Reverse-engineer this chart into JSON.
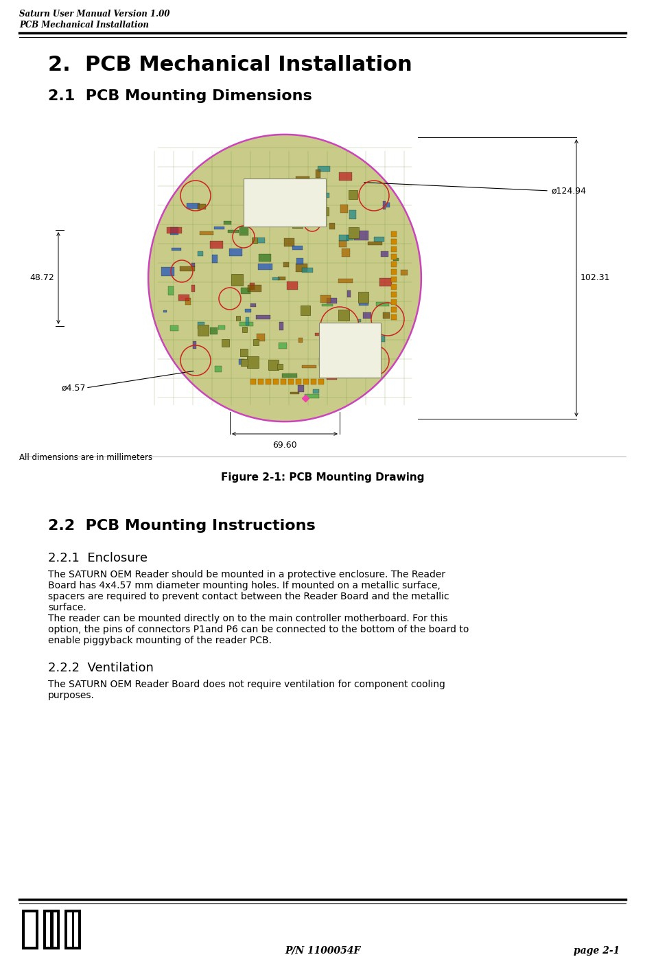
{
  "header_line1": "Saturn User Manual Version 1.00",
  "header_line2": "PCB Mechanical Installation",
  "main_title": "2.  PCB Mechanical Installation",
  "section_21_title": "2.1  PCB Mounting Dimensions",
  "figure_caption": "Figure 2-1: PCB Mounting Drawing",
  "dim_labels": {
    "diameter_top": "ø124.94",
    "width_right": "102.31",
    "height_left": "48.72",
    "diameter_hole": "ø4.57",
    "width_bottom": "69.60"
  },
  "all_dimensions_note": "All dimensions are in millimeters",
  "section_22_title": "2.2  PCB Mounting Instructions",
  "section_221_title": "2.2.1  Enclosure",
  "section_221_text_lines": [
    "The SATURN OEM Reader should be mounted in a protective enclosure. The Reader",
    "Board has 4x4.57 mm diameter mounting holes. If mounted on a metallic surface,",
    "spacers are required to prevent contact between the Reader Board and the metallic",
    "surface.",
    "The reader can be mounted directly on to the main controller motherboard. For this",
    "option, the pins of connectors P1and P6 can be connected to the bottom of the board to",
    "enable piggyback mounting of the reader PCB."
  ],
  "section_222_title": "2.2.2  Ventilation",
  "section_222_text_lines": [
    "The SATURN OEM Reader Board does not require ventilation for component cooling",
    "purposes."
  ],
  "footer_pn": "P/N 1100054F",
  "footer_page": "page 2-1",
  "bg_color": "#ffffff",
  "pcb_outline_color": "#cc44bb",
  "pcb_board_color": "#c8cc88",
  "pcb_trace_color": "#6a8830",
  "header_font_size": 8.5,
  "main_title_font_size": 22,
  "section_title_font_size": 16,
  "subsection_title_font_size": 13,
  "body_font_size": 10,
  "caption_font_size": 11,
  "dim_font_size": 9,
  "note_font_size": 8.5
}
